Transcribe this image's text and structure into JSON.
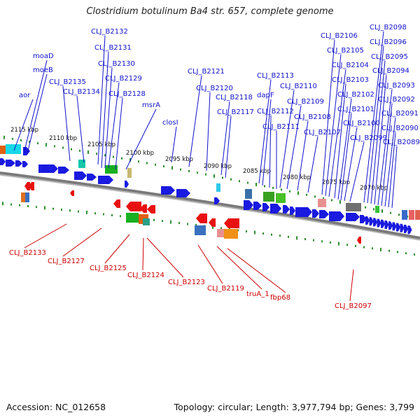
{
  "title": "Clostridium botulinum Ba4 str. 657, complete genome",
  "accession": "Accession: NC_012658",
  "info": "Topology: circular; Length: 3,977,794 bp; Genes: 3,799",
  "colors": {
    "forward_label": "#1111cc",
    "reverse_label": "#cc0000",
    "backbone": "#7a7a7a",
    "tick": "#2f8f2f"
  },
  "kbp_ticks": [
    "2115 kbp",
    "2110 kbp",
    "2105 kbp",
    "2100 kbp",
    "2095 kbp",
    "2090 kbp",
    "2085 kbp",
    "2080 kbp",
    "2075 kbp",
    "2070 kbp"
  ],
  "top_labels": [
    "CLJ_B2132",
    "CLJ_B2131",
    "moaD",
    "CLJ_B2130",
    "moeB",
    "CLJ_B2129",
    "CLJ_B2135",
    "CLJ_B2128",
    "CLJ_B2134",
    "aor",
    "msrA",
    "closI",
    "CLJ_B2121",
    "CLJ_B2120",
    "CLJ_B2118",
    "CLJ_B2117",
    "CLJ_B2113",
    "dapF",
    "CLJ_B2110",
    "CLJ_B2112",
    "CLJ_B2109",
    "CLJ_B2111",
    "CLJ_B2108",
    "CLJ_B2107",
    "CLJ_B2106",
    "CLJ_B2105",
    "CLJ_B2104",
    "CLJ_B2103",
    "CLJ_B2102",
    "CLJ_B2101",
    "CLJ_B2100",
    "CLJ_B2099",
    "CLJ_B2098",
    "CLJ_B2096",
    "CLJ_B2095",
    "CLJ_B2094",
    "CLJ_B2093",
    "CLJ_B2092",
    "CLJ_B2091",
    "CLJ_B2090",
    "CLJ_B2089"
  ],
  "bottom_labels": [
    "CLJ_B2133",
    "CLJ_B2127",
    "CLJ_B2125",
    "CLJ_B2124",
    "CLJ_B2123",
    "CLJ_B2119",
    "truA_1",
    "fbp68",
    "CLJ_B2097"
  ]
}
